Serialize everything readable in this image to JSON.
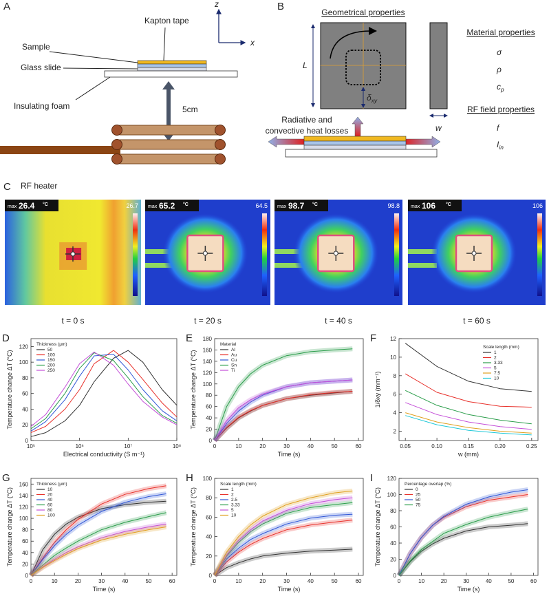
{
  "panels": {
    "a": {
      "letter": "A",
      "kapton": "Kapton tape",
      "sample": "Sample",
      "glass": "Glass slide",
      "foam": "Insulating foam",
      "distance": "5cm",
      "heater": "RF heater",
      "z": "z",
      "x": "x"
    },
    "b": {
      "letter": "B",
      "geo": "Geometrical properties",
      "L": "L",
      "delta": {
        "main": "δ",
        "sub": "xy"
      },
      "w": "w",
      "material": "Material properties",
      "sigma": "σ",
      "rho": "ρ",
      "cp": {
        "main": "c",
        "sub": "p"
      },
      "rf": "RF field properties",
      "f": "f",
      "iin": {
        "main": "I",
        "sub": "in"
      },
      "loss1": "Radiative and",
      "loss2": "convective heat losses"
    },
    "c": {
      "letter": "C",
      "frames": [
        {
          "max_word": "max",
          "max": 26.4,
          "unit": "°C",
          "scale_max": 26.7,
          "time": "t = 0 s"
        },
        {
          "max_word": "max",
          "max": 65.2,
          "unit": "°C",
          "scale_max": 64.5,
          "time": "t = 20 s"
        },
        {
          "max_word": "max",
          "max": 98.7,
          "unit": "°C",
          "scale_max": 98.8,
          "time": "t = 40 s"
        },
        {
          "max_word": "max",
          "max": 106,
          "unit": "°C",
          "scale_max": 106,
          "time": "t = 60 s"
        }
      ]
    }
  },
  "chart_data": [
    {
      "panel": "D",
      "type": "line",
      "xscale": "log",
      "xlabel": "Electrical conductivity (S m⁻¹)",
      "ylabel": "Temperature change ΔT (°C)",
      "legend_title": "Thickness (μm)",
      "legend": "upper left",
      "x": [
        100000,
        200000,
        500000,
        1000000,
        2000000,
        5000000,
        10000000,
        20000000,
        50000000,
        100000000
      ],
      "xlim": [
        100000,
        100000000
      ],
      "xticks": [
        {
          "value": 100000,
          "label": "10⁵"
        },
        {
          "value": 1000000,
          "label": "10⁶"
        },
        {
          "value": 10000000,
          "label": "10⁷"
        },
        {
          "value": 100000000,
          "label": "10⁸"
        }
      ],
      "ylim": [
        0,
        130
      ],
      "yticks": [
        0,
        20,
        40,
        60,
        80,
        100,
        120
      ],
      "series": [
        {
          "name": "50",
          "color": "#333333",
          "values": [
            5,
            10,
            25,
            45,
            75,
            105,
            115,
            100,
            65,
            45
          ]
        },
        {
          "name": "100",
          "color": "#e8302a",
          "values": [
            10,
            18,
            40,
            65,
            98,
            115,
            100,
            78,
            48,
            30
          ]
        },
        {
          "name": "150",
          "color": "#2f56d6",
          "values": [
            12,
            24,
            52,
            82,
            108,
            110,
            90,
            65,
            38,
            25
          ]
        },
        {
          "name": "200",
          "color": "#2a9d4a",
          "values": [
            15,
            28,
            60,
            92,
            112,
            102,
            80,
            56,
            32,
            22
          ]
        },
        {
          "name": "250",
          "color": "#c44fd8",
          "values": [
            18,
            33,
            68,
            98,
            113,
            96,
            72,
            50,
            30,
            20
          ]
        }
      ]
    },
    {
      "panel": "E",
      "type": "line",
      "bands": true,
      "xlabel": "Time (s)",
      "ylabel": "Temperature change ΔT (°C)",
      "legend_title": "Material",
      "legend": "upper left",
      "x": [
        0,
        5,
        10,
        15,
        20,
        30,
        40,
        50,
        57.5
      ],
      "xlim": [
        0,
        62
      ],
      "xticks": [
        0,
        10,
        20,
        30,
        40,
        50,
        60
      ],
      "ylim": [
        0,
        180
      ],
      "yticks": [
        0,
        20,
        40,
        60,
        80,
        100,
        120,
        140,
        160,
        180
      ],
      "series": [
        {
          "name": "Al",
          "color": "#333333",
          "values": [
            0,
            22,
            40,
            52,
            62,
            74,
            80,
            84,
            87
          ]
        },
        {
          "name": "Au",
          "color": "#e8302a",
          "values": [
            0,
            23,
            41,
            53,
            62,
            74,
            81,
            85,
            87
          ]
        },
        {
          "name": "Cu",
          "color": "#2f56d6",
          "values": [
            0,
            30,
            52,
            68,
            80,
            95,
            102,
            105,
            107
          ]
        },
        {
          "name": "Sn",
          "color": "#2a9d4a",
          "values": [
            0,
            60,
            95,
            118,
            133,
            150,
            157,
            160,
            162
          ]
        },
        {
          "name": "Ti",
          "color": "#c44fd8",
          "values": [
            0,
            35,
            58,
            72,
            82,
            95,
            102,
            105,
            107
          ]
        }
      ]
    },
    {
      "panel": "F",
      "type": "line",
      "xlabel": "w (mm)",
      "ylabel": "1/δxy (mm⁻¹)",
      "legend_title": "Scale length (mm)",
      "legend": "upper right",
      "x": [
        0.05,
        0.1,
        0.15,
        0.2,
        0.25
      ],
      "xlim": [
        0.04,
        0.26
      ],
      "xticks": [
        {
          "value": 0.05,
          "label": "0.05"
        },
        {
          "value": 0.1,
          "label": "0.10"
        },
        {
          "value": 0.15,
          "label": "0.15"
        },
        {
          "value": 0.2,
          "label": "0.20"
        },
        {
          "value": 0.25,
          "label": "0.25"
        }
      ],
      "ylim": [
        1,
        12
      ],
      "yticks": [
        2,
        4,
        6,
        8,
        10,
        12
      ],
      "series": [
        {
          "name": "1",
          "color": "#333333",
          "values": [
            11.5,
            9.0,
            7.4,
            6.6,
            6.3
          ]
        },
        {
          "name": "2",
          "color": "#e8302a",
          "values": [
            8.2,
            6.2,
            5.2,
            4.7,
            4.6
          ]
        },
        {
          "name": "3.33",
          "color": "#2a9d4a",
          "values": [
            6.4,
            4.8,
            3.8,
            3.2,
            2.8
          ]
        },
        {
          "name": "5",
          "color": "#c44fd8",
          "values": [
            5.1,
            3.8,
            3.0,
            2.5,
            2.2
          ]
        },
        {
          "name": "7.5",
          "color": "#e0a020",
          "values": [
            4.0,
            3.0,
            2.4,
            2.0,
            1.8
          ]
        },
        {
          "name": "10",
          "color": "#1ec8d8",
          "values": [
            3.7,
            2.7,
            2.1,
            1.8,
            1.6
          ]
        }
      ]
    },
    {
      "panel": "G",
      "type": "line",
      "bands": true,
      "xlabel": "Time (s)",
      "ylabel": "Temperature change ΔT (°C)",
      "legend_title": "Thickness (μm)",
      "legend": "upper left",
      "x": [
        0,
        5,
        10,
        15,
        20,
        30,
        40,
        50,
        57.5
      ],
      "xlim": [
        0,
        62
      ],
      "xticks": [
        0,
        10,
        20,
        30,
        40,
        50,
        60
      ],
      "ylim": [
        0,
        170
      ],
      "yticks": [
        0,
        20,
        40,
        60,
        80,
        100,
        120,
        140,
        160
      ],
      "series": [
        {
          "name": "10",
          "color": "#333333",
          "values": [
            0,
            45,
            72,
            90,
            102,
            117,
            124,
            128,
            130
          ]
        },
        {
          "name": "20",
          "color": "#e8302a",
          "values": [
            0,
            30,
            58,
            80,
            98,
            125,
            142,
            152,
            157
          ]
        },
        {
          "name": "40",
          "color": "#2f56d6",
          "values": [
            0,
            28,
            52,
            72,
            88,
            112,
            128,
            138,
            143
          ]
        },
        {
          "name": "60",
          "color": "#2a9d4a",
          "values": [
            0,
            18,
            35,
            48,
            60,
            80,
            93,
            103,
            110
          ]
        },
        {
          "name": "80",
          "color": "#c44fd8",
          "values": [
            0,
            15,
            28,
            40,
            50,
            66,
            77,
            85,
            90
          ]
        },
        {
          "name": "100",
          "color": "#e0a020",
          "values": [
            0,
            14,
            26,
            37,
            47,
            62,
            72,
            80,
            85
          ]
        }
      ]
    },
    {
      "panel": "H",
      "type": "line",
      "bands": true,
      "xlabel": "Time (s)",
      "ylabel": "Temperature change ΔT (°C)",
      "legend_title": "Scale length (mm)",
      "legend": "upper left",
      "x": [
        0,
        5,
        10,
        15,
        20,
        30,
        40,
        50,
        57.5
      ],
      "xlim": [
        0,
        62
      ],
      "xticks": [
        0,
        10,
        20,
        30,
        40,
        50,
        60
      ],
      "ylim": [
        0,
        100
      ],
      "yticks": [
        0,
        20,
        40,
        60,
        80,
        100
      ],
      "series": [
        {
          "name": "1",
          "color": "#333333",
          "values": [
            0,
            8,
            13,
            17,
            20,
            23,
            25,
            26,
            27
          ]
        },
        {
          "name": "2",
          "color": "#e8302a",
          "values": [
            0,
            14,
            24,
            32,
            38,
            47,
            52,
            55,
            57
          ]
        },
        {
          "name": "2.5",
          "color": "#2f56d6",
          "values": [
            0,
            17,
            28,
            37,
            43,
            53,
            59,
            62,
            63
          ]
        },
        {
          "name": "3.33",
          "color": "#2a9d4a",
          "values": [
            0,
            20,
            34,
            45,
            53,
            64,
            70,
            73,
            75
          ]
        },
        {
          "name": "5",
          "color": "#c44fd8",
          "values": [
            0,
            21,
            36,
            47,
            56,
            67,
            74,
            78,
            80
          ]
        },
        {
          "name": "10",
          "color": "#e0a020",
          "values": [
            0,
            24,
            40,
            52,
            61,
            73,
            80,
            85,
            87
          ]
        }
      ]
    },
    {
      "panel": "I",
      "type": "line",
      "bands": true,
      "xlabel": "Time (s)",
      "ylabel": "Temperature change ΔT (°C)",
      "legend_title": "Percentage overlap (%)",
      "legend": "upper left",
      "x": [
        0,
        5,
        10,
        15,
        20,
        30,
        40,
        50,
        57.5
      ],
      "xlim": [
        0,
        62
      ],
      "xticks": [
        0,
        10,
        20,
        30,
        40,
        50,
        60
      ],
      "ylim": [
        0,
        120
      ],
      "yticks": [
        0,
        20,
        40,
        60,
        80,
        100,
        120
      ],
      "series": [
        {
          "name": "0",
          "color": "#333333",
          "values": [
            0,
            17,
            30,
            39,
            46,
            55,
            60,
            62,
            64
          ]
        },
        {
          "name": "25",
          "color": "#e8302a",
          "values": [
            0,
            27,
            47,
            62,
            72,
            85,
            93,
            97,
            100
          ]
        },
        {
          "name": "50",
          "color": "#2f56d6",
          "values": [
            0,
            27,
            47,
            62,
            73,
            88,
            97,
            103,
            106
          ]
        },
        {
          "name": "75",
          "color": "#2a9d4a",
          "values": [
            0,
            18,
            32,
            42,
            52,
            63,
            72,
            78,
            82
          ]
        }
      ]
    }
  ]
}
